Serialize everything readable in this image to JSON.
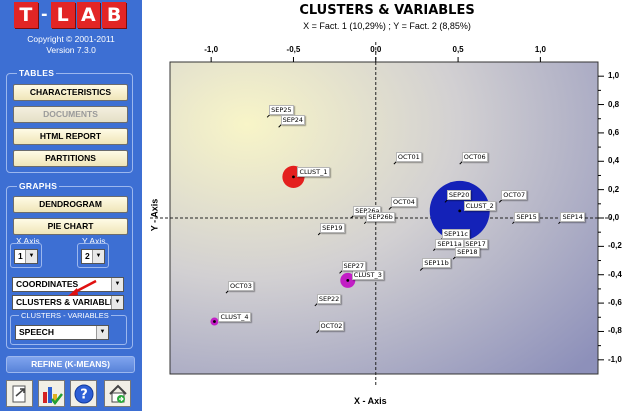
{
  "sidebar": {
    "logo_letters": [
      "T",
      "L",
      "A",
      "B"
    ],
    "logo_dash": "-",
    "copyright": "Copyright © 2001-2011",
    "version": "Version 7.3.0",
    "tables": {
      "title": "TABLES",
      "buttons": [
        "CHARACTERISTICS",
        "DOCUMENTS",
        "HTML REPORT",
        "PARTITIONS"
      ]
    },
    "graphs": {
      "title": "GRAPHS",
      "buttons": [
        "DENDROGRAM",
        "PIE CHART"
      ],
      "x_axis_label": "X Axis",
      "x_axis_value": "1",
      "y_axis_label": "Y Axis",
      "y_axis_value": "2",
      "coordinates_value": "COORDINATES",
      "plot_type_value": "CLUSTERS & VARIABLES",
      "cv_title": "CLUSTERS - VARIABLES",
      "cv_value": "SPEECH"
    },
    "refine_label": "REFINE (K-MEANS)",
    "tools": [
      "export-icon",
      "chart-check-icon",
      "help-icon",
      "home-icon"
    ]
  },
  "chart": {
    "title": "CLUSTERS & VARIABLES",
    "subtitle": "X = Fact. 1 (10,29%) ; Y = Fact. 2 (8,85%)",
    "x_axis_label": "X - Axis",
    "y_axis_label": "Y - Axis",
    "x_ticks": [
      "-1,0",
      "-0,5",
      "0,0",
      "0,5",
      "1,0"
    ],
    "y_ticks": [
      "1,0",
      "0,8",
      "0,6",
      "0,4",
      "0,2",
      "0,0",
      "-0,2",
      "-0,4",
      "-0,6",
      "-0,8",
      "-1,0"
    ]
  },
  "chart_data": {
    "type": "scatter",
    "title": "CLUSTERS & VARIABLES",
    "subtitle": "X = Fact. 1 (10,29%) ; Y = Fact. 2 (8,85%)",
    "xlabel": "X - Axis",
    "ylabel": "Y - Axis",
    "xlim": [
      -1.25,
      1.35
    ],
    "ylim": [
      -1.1,
      1.1
    ],
    "grid": false,
    "clusters": [
      {
        "name": "CLUST_1",
        "x": -0.5,
        "y": 0.29,
        "size": 0.37,
        "color": "#e4201e"
      },
      {
        "name": "CLUST_2",
        "x": 0.51,
        "y": 0.05,
        "size": 1.0,
        "color": "#1422b8"
      },
      {
        "name": "CLUST_3",
        "x": -0.17,
        "y": -0.44,
        "size": 0.25,
        "color": "#c21ec5"
      },
      {
        "name": "CLUST_4",
        "x": -0.98,
        "y": -0.73,
        "size": 0.13,
        "color": "#c21ec5"
      }
    ],
    "variables": [
      {
        "name": "SEP25",
        "x": -0.66,
        "y": 0.71
      },
      {
        "name": "SEP24",
        "x": -0.59,
        "y": 0.64
      },
      {
        "name": "OCT01",
        "x": 0.11,
        "y": 0.38
      },
      {
        "name": "OCT06",
        "x": 0.51,
        "y": 0.38
      },
      {
        "name": "SEP20",
        "x": 0.42,
        "y": 0.11
      },
      {
        "name": "OCT07",
        "x": 0.75,
        "y": 0.11
      },
      {
        "name": "OCT04",
        "x": 0.08,
        "y": 0.06
      },
      {
        "name": "SEP26a",
        "x": -0.15,
        "y": 0.0
      },
      {
        "name": "SEP26b",
        "x": -0.07,
        "y": -0.04
      },
      {
        "name": "SEP15",
        "x": 0.83,
        "y": -0.04
      },
      {
        "name": "SEP14",
        "x": 1.11,
        "y": -0.04
      },
      {
        "name": "SEP19",
        "x": -0.35,
        "y": -0.12
      },
      {
        "name": "SEP11c",
        "x": 0.39,
        "y": -0.16
      },
      {
        "name": "SEP17",
        "x": 0.52,
        "y": -0.23
      },
      {
        "name": "SEP11a",
        "x": 0.35,
        "y": -0.23
      },
      {
        "name": "SEP18",
        "x": 0.47,
        "y": -0.29
      },
      {
        "name": "SEP11b",
        "x": 0.27,
        "y": -0.37
      },
      {
        "name": "SEP27",
        "x": -0.22,
        "y": -0.39
      },
      {
        "name": "OCT03",
        "x": -0.91,
        "y": -0.53
      },
      {
        "name": "SEP22",
        "x": -0.37,
        "y": -0.62
      },
      {
        "name": "OCT02",
        "x": -0.36,
        "y": -0.81
      }
    ]
  }
}
